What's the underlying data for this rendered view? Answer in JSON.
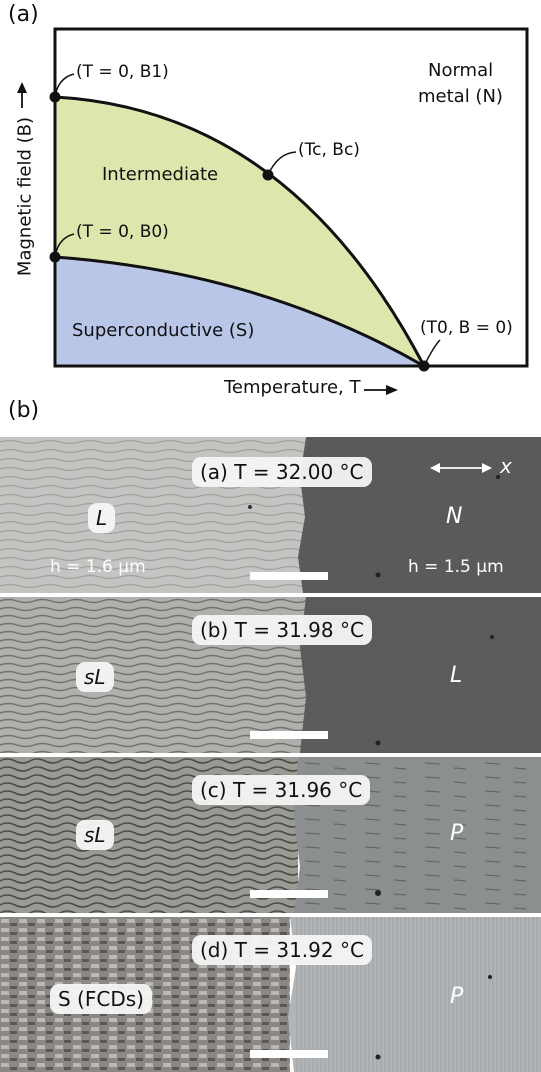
{
  "panel_a": {
    "letter": "(a)",
    "y_axis_label": "Magnetic field (B)",
    "x_axis_label": "Temperature, T",
    "region_normal_line1": "Normal",
    "region_normal_line2": "metal (N)",
    "region_intermediate": "Intermediate",
    "region_superconductive": "Superconductive (S)",
    "point_B1": "(T = 0, B1)",
    "point_B0": "(T = 0, B0)",
    "point_critical": "(Tc, Bc)",
    "point_T0": "(T0, B = 0)",
    "colors": {
      "intermediate": "#dde6ad",
      "superconductive": "#b9c6e8",
      "line": "#111111"
    }
  },
  "panel_b": {
    "letter": "(b)",
    "rows": [
      {
        "temp_label": "(a) T = 32.00 °C",
        "left_tag": "L",
        "right_tag": "N",
        "left_thickness": "h = 1.6 µm",
        "right_thickness": "h = 1.5 µm",
        "axis_label": "x",
        "colors": {
          "left": "#c2c5c1",
          "right": "#585b5a"
        }
      },
      {
        "temp_label": "(b) T = 31.98 °C",
        "left_tag": "sL",
        "right_tag": "L",
        "colors": {
          "left": "#aeb0ac",
          "right": "#595c5b"
        }
      },
      {
        "temp_label": "(c) T = 31.96 °C",
        "left_tag": "sL",
        "right_tag": "P",
        "colors": {
          "left": "#9a9a94",
          "right": "#8b8f90"
        }
      },
      {
        "temp_label": "(d) T = 31.92 °C",
        "left_tag": "S (FCDs)",
        "right_tag": "P",
        "colors": {
          "left": "#8a8784",
          "right": "#b2b5b8"
        }
      }
    ]
  }
}
